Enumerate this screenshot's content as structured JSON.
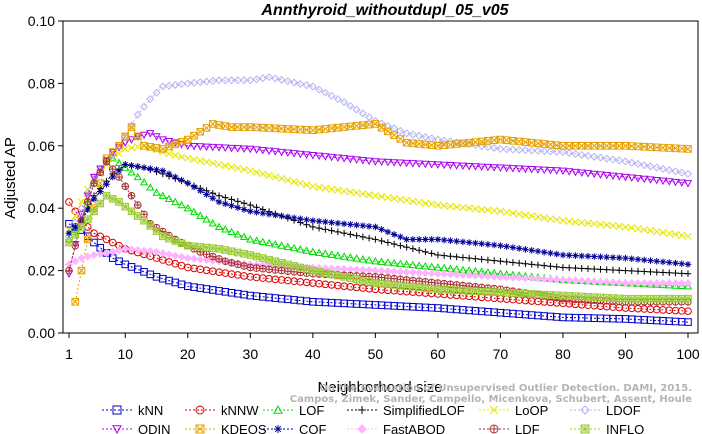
{
  "chart_data": {
    "type": "line",
    "title": "Annthyroid_withoutdupl_05_v05",
    "xlabel": "Neighborhood size",
    "ylabel": "Adjusted AP",
    "xlim": [
      1,
      100
    ],
    "ylim": [
      0,
      0.1
    ],
    "xticks": [
      "1",
      "10",
      "20",
      "30",
      "40",
      "50",
      "60",
      "70",
      "80",
      "90",
      "100"
    ],
    "yticks": [
      "0.00",
      "0.02",
      "0.04",
      "0.06",
      "0.08",
      "0.10"
    ],
    "grid": false,
    "legend_position": "bottom",
    "credit_lines": [
      "Campos, Zimek, Sander, Campello, Micenkova, Schubert, Assent, Houle",
      "On the Evaluation of Unsupervised Outlier Detection. DAMI, 2015."
    ],
    "series": [
      {
        "name": "kNN",
        "color": "#0000cc",
        "marker": "square",
        "points": [
          [
            1,
            0.035
          ],
          [
            3,
            0.033
          ],
          [
            5,
            0.029
          ],
          [
            8,
            0.024
          ],
          [
            10,
            0.022
          ],
          [
            15,
            0.018
          ],
          [
            20,
            0.015
          ],
          [
            30,
            0.012
          ],
          [
            40,
            0.01
          ],
          [
            50,
            0.009
          ],
          [
            60,
            0.008
          ],
          [
            70,
            0.0065
          ],
          [
            80,
            0.005
          ],
          [
            90,
            0.0045
          ],
          [
            100,
            0.0035
          ]
        ]
      },
      {
        "name": "kNNW",
        "color": "#dd0000",
        "marker": "circle",
        "points": [
          [
            1,
            0.042
          ],
          [
            3,
            0.036
          ],
          [
            5,
            0.032
          ],
          [
            8,
            0.029
          ],
          [
            10,
            0.027
          ],
          [
            15,
            0.024
          ],
          [
            20,
            0.021
          ],
          [
            30,
            0.018
          ],
          [
            40,
            0.016
          ],
          [
            50,
            0.014
          ],
          [
            60,
            0.0125
          ],
          [
            70,
            0.011
          ],
          [
            80,
            0.0095
          ],
          [
            90,
            0.008
          ],
          [
            100,
            0.007
          ]
        ]
      },
      {
        "name": "LOF",
        "color": "#00dd00",
        "marker": "triangle-up",
        "points": [
          [
            1,
            0.03
          ],
          [
            3,
            0.036
          ],
          [
            5,
            0.048
          ],
          [
            7,
            0.055
          ],
          [
            8,
            0.056
          ],
          [
            10,
            0.053
          ],
          [
            12,
            0.05
          ],
          [
            15,
            0.045
          ],
          [
            20,
            0.04
          ],
          [
            25,
            0.034
          ],
          [
            30,
            0.03
          ],
          [
            40,
            0.026
          ],
          [
            50,
            0.023
          ],
          [
            60,
            0.021
          ],
          [
            70,
            0.019
          ],
          [
            80,
            0.017
          ],
          [
            90,
            0.016
          ],
          [
            100,
            0.015
          ]
        ]
      },
      {
        "name": "SimplifiedLOF",
        "color": "#000000",
        "marker": "plus",
        "points": [
          [
            1,
            0.032
          ],
          [
            3,
            0.036
          ],
          [
            5,
            0.044
          ],
          [
            8,
            0.051
          ],
          [
            10,
            0.054
          ],
          [
            13,
            0.053
          ],
          [
            16,
            0.051
          ],
          [
            20,
            0.048
          ],
          [
            25,
            0.044
          ],
          [
            30,
            0.041
          ],
          [
            40,
            0.034
          ],
          [
            50,
            0.03
          ],
          [
            60,
            0.025
          ],
          [
            70,
            0.023
          ],
          [
            80,
            0.021
          ],
          [
            90,
            0.02
          ],
          [
            100,
            0.019
          ]
        ]
      },
      {
        "name": "LoOP",
        "color": "#e6e600",
        "marker": "x",
        "points": [
          [
            1,
            0.033
          ],
          [
            3,
            0.042
          ],
          [
            5,
            0.05
          ],
          [
            8,
            0.056
          ],
          [
            10,
            0.059
          ],
          [
            13,
            0.06
          ],
          [
            16,
            0.058
          ],
          [
            20,
            0.056
          ],
          [
            30,
            0.052
          ],
          [
            40,
            0.047
          ],
          [
            50,
            0.044
          ],
          [
            60,
            0.041
          ],
          [
            70,
            0.039
          ],
          [
            80,
            0.036
          ],
          [
            90,
            0.034
          ],
          [
            100,
            0.031
          ]
        ]
      },
      {
        "name": "LDOF",
        "color": "#b4b4f0",
        "marker": "diamond",
        "points": [
          [
            1,
            0.031
          ],
          [
            3,
            0.04
          ],
          [
            5,
            0.05
          ],
          [
            8,
            0.057
          ],
          [
            10,
            0.063
          ],
          [
            12,
            0.07
          ],
          [
            14,
            0.075
          ],
          [
            16,
            0.079
          ],
          [
            20,
            0.08
          ],
          [
            25,
            0.081
          ],
          [
            30,
            0.081
          ],
          [
            33,
            0.082
          ],
          [
            40,
            0.079
          ],
          [
            45,
            0.074
          ],
          [
            50,
            0.068
          ],
          [
            55,
            0.064
          ],
          [
            60,
            0.062
          ],
          [
            70,
            0.059
          ],
          [
            80,
            0.058
          ],
          [
            90,
            0.055
          ],
          [
            100,
            0.051
          ]
        ]
      },
      {
        "name": "ODIN",
        "color": "#aa00ee",
        "marker": "triangle-down",
        "points": [
          [
            1,
            0.019
          ],
          [
            3,
            0.038
          ],
          [
            5,
            0.05
          ],
          [
            8,
            0.058
          ],
          [
            10,
            0.061
          ],
          [
            12,
            0.063
          ],
          [
            14,
            0.064
          ],
          [
            16,
            0.062
          ],
          [
            20,
            0.06
          ],
          [
            30,
            0.059
          ],
          [
            40,
            0.057
          ],
          [
            50,
            0.055
          ],
          [
            60,
            0.054
          ],
          [
            70,
            0.053
          ],
          [
            80,
            0.052
          ],
          [
            90,
            0.05
          ],
          [
            95,
            0.049
          ],
          [
            100,
            0.048
          ]
        ]
      },
      {
        "name": "KDEOS",
        "color": "#e6a000",
        "marker": "square-x",
        "points": [
          [
            2,
            0.01
          ],
          [
            3,
            0.02
          ],
          [
            5,
            0.04
          ],
          [
            7,
            0.056
          ],
          [
            9,
            0.06
          ],
          [
            11,
            0.066
          ],
          [
            13,
            0.06
          ],
          [
            16,
            0.059
          ],
          [
            20,
            0.062
          ],
          [
            24,
            0.067
          ],
          [
            27,
            0.066
          ],
          [
            30,
            0.066
          ],
          [
            40,
            0.065
          ],
          [
            50,
            0.067
          ],
          [
            55,
            0.061
          ],
          [
            60,
            0.06
          ],
          [
            70,
            0.062
          ],
          [
            80,
            0.06
          ],
          [
            90,
            0.06
          ],
          [
            100,
            0.059
          ]
        ]
      },
      {
        "name": "COF",
        "color": "#000099",
        "marker": "asterisk",
        "points": [
          [
            1,
            0.032
          ],
          [
            3,
            0.036
          ],
          [
            5,
            0.043
          ],
          [
            8,
            0.05
          ],
          [
            10,
            0.054
          ],
          [
            13,
            0.053
          ],
          [
            16,
            0.052
          ],
          [
            20,
            0.048
          ],
          [
            25,
            0.042
          ],
          [
            30,
            0.039
          ],
          [
            40,
            0.036
          ],
          [
            50,
            0.034
          ],
          [
            55,
            0.03
          ],
          [
            60,
            0.03
          ],
          [
            70,
            0.028
          ],
          [
            80,
            0.025
          ],
          [
            90,
            0.024
          ],
          [
            100,
            0.022
          ]
        ]
      },
      {
        "name": "FastABOD",
        "color": "#ffb4ff",
        "marker": "diamond-filled",
        "points": [
          [
            1,
            0.022
          ],
          [
            3,
            0.024
          ],
          [
            5,
            0.025
          ],
          [
            8,
            0.026
          ],
          [
            10,
            0.027
          ],
          [
            15,
            0.026
          ],
          [
            20,
            0.024
          ],
          [
            30,
            0.022
          ],
          [
            40,
            0.021
          ],
          [
            50,
            0.02
          ],
          [
            60,
            0.019
          ],
          [
            70,
            0.018
          ],
          [
            80,
            0.017
          ],
          [
            90,
            0.016
          ],
          [
            100,
            0.016
          ]
        ]
      },
      {
        "name": "LDF",
        "color": "#aa3333",
        "marker": "circle-plus",
        "points": [
          [
            1,
            0.02
          ],
          [
            3,
            0.036
          ],
          [
            5,
            0.048
          ],
          [
            7,
            0.055
          ],
          [
            9,
            0.05
          ],
          [
            11,
            0.044
          ],
          [
            14,
            0.035
          ],
          [
            18,
            0.03
          ],
          [
            22,
            0.026
          ],
          [
            26,
            0.023
          ],
          [
            30,
            0.021
          ],
          [
            40,
            0.019
          ],
          [
            50,
            0.018
          ],
          [
            60,
            0.016
          ],
          [
            70,
            0.014
          ],
          [
            80,
            0.011
          ],
          [
            90,
            0.01
          ],
          [
            100,
            0.01
          ]
        ]
      },
      {
        "name": "INFLO",
        "color": "#99cc33",
        "marker": "square-star",
        "points": [
          [
            1,
            0.029
          ],
          [
            3,
            0.034
          ],
          [
            5,
            0.039
          ],
          [
            7,
            0.044
          ],
          [
            9,
            0.042
          ],
          [
            11,
            0.039
          ],
          [
            13,
            0.036
          ],
          [
            16,
            0.031
          ],
          [
            20,
            0.028
          ],
          [
            25,
            0.027
          ],
          [
            30,
            0.025
          ],
          [
            40,
            0.02
          ],
          [
            50,
            0.016
          ],
          [
            60,
            0.014
          ],
          [
            70,
            0.013
          ],
          [
            80,
            0.012
          ],
          [
            90,
            0.011
          ],
          [
            100,
            0.011
          ]
        ]
      }
    ],
    "legend_rows": [
      [
        "kNN",
        "kNNW",
        "LOF",
        "SimplifiedLOF",
        "LoOP",
        "LDOF"
      ],
      [
        "ODIN",
        "KDEOS",
        "COF",
        "FastABOD",
        "LDF",
        "INFLO"
      ]
    ]
  }
}
